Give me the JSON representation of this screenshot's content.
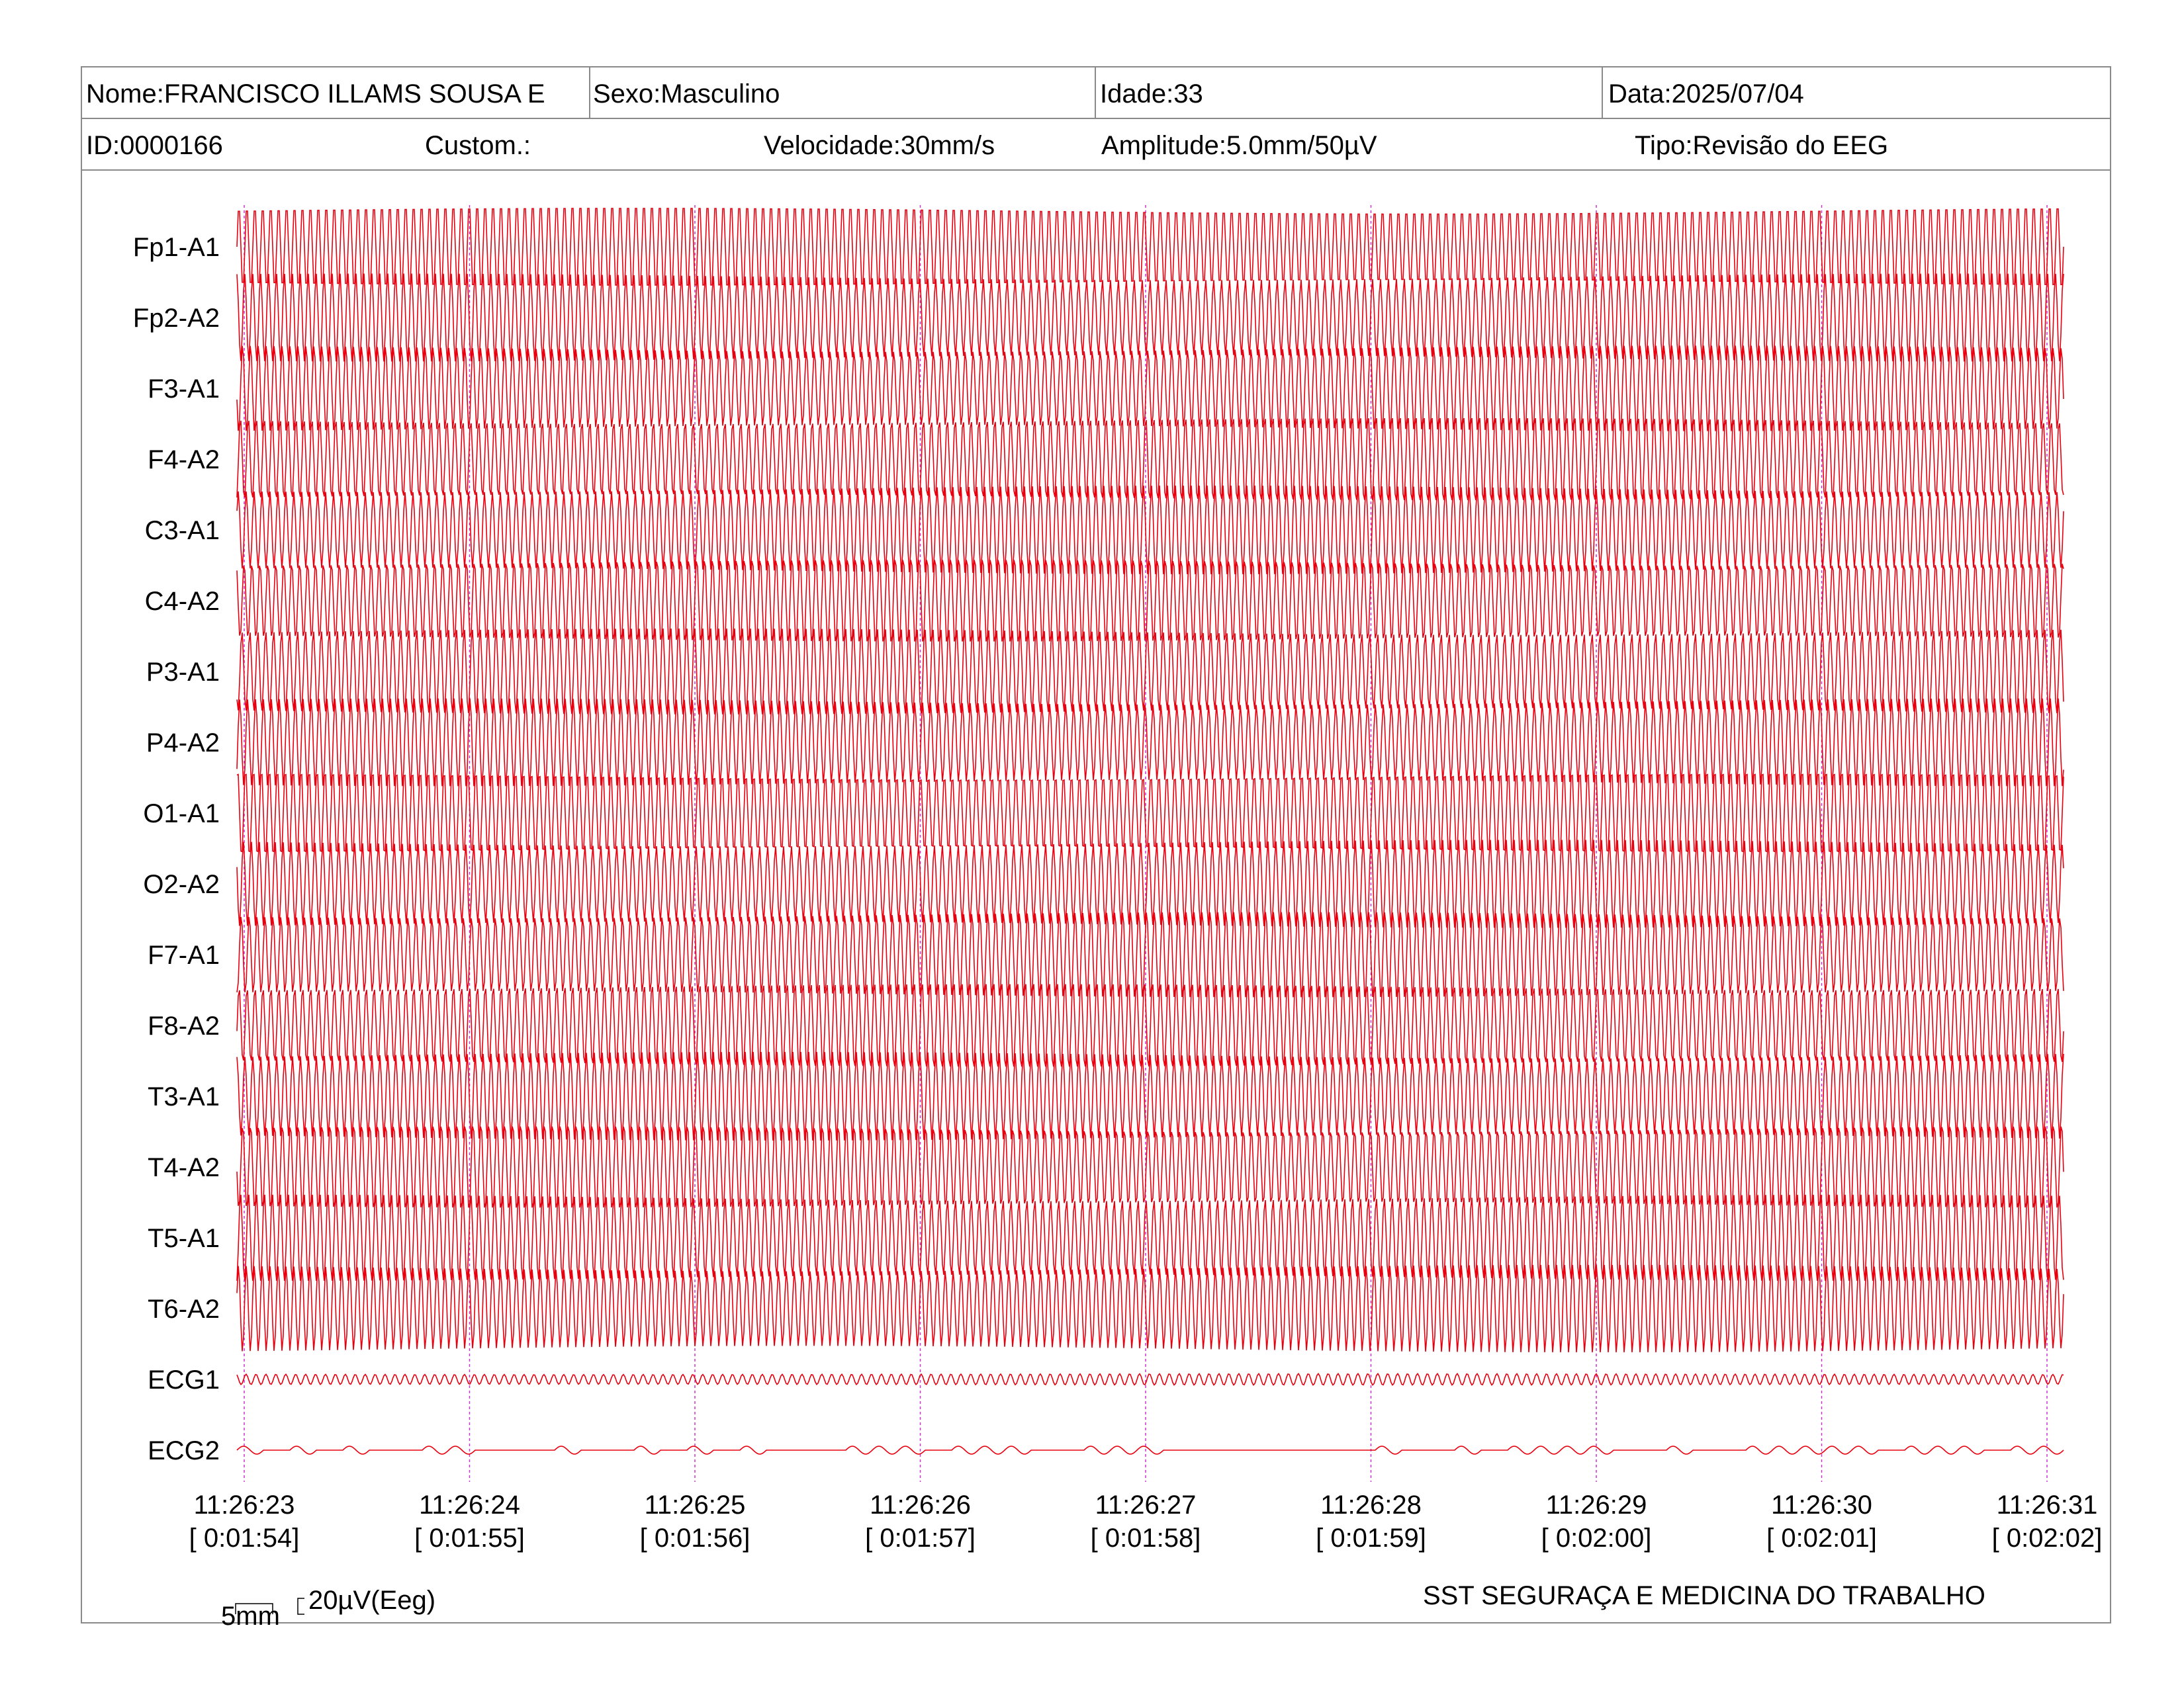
{
  "header": {
    "name": "Nome:FRANCISCO ILLAMS SOUSA E",
    "sex": "Sexo:Masculino",
    "age": "Idade:33",
    "date": "Data:2025/07/04",
    "id": "ID:0000166",
    "custom": "Custom.:",
    "speed": "Velocidade:30mm/s",
    "amplitude": "Amplitude:5.0mm/50µV",
    "type": "Tipo:Revisão do EEG"
  },
  "channels": [
    "Fp1-A1",
    "Fp2-A2",
    "F3-A1",
    "F4-A2",
    "C3-A1",
    "C4-A2",
    "P3-A1",
    "P4-A2",
    "O1-A1",
    "O2-A2",
    "F7-A1",
    "F8-A2",
    "T3-A1",
    "T4-A2",
    "T5-A1",
    "T6-A2",
    "ECG1",
    "ECG2"
  ],
  "time_marks": [
    {
      "clock": "11:26:23",
      "elapsed": "[ 0:01:54]"
    },
    {
      "clock": "11:26:24",
      "elapsed": "[ 0:01:55]"
    },
    {
      "clock": "11:26:25",
      "elapsed": "[ 0:01:56]"
    },
    {
      "clock": "11:26:26",
      "elapsed": "[ 0:01:57]"
    },
    {
      "clock": "11:26:27",
      "elapsed": "[ 0:01:58]"
    },
    {
      "clock": "11:26:28",
      "elapsed": "[ 0:01:59]"
    },
    {
      "clock": "11:26:29",
      "elapsed": "[ 0:02:00]"
    },
    {
      "clock": "11:26:30",
      "elapsed": "[ 0:02:01]"
    },
    {
      "clock": "11:26:31",
      "elapsed": "[ 0:02:02]"
    }
  ],
  "scale": {
    "time": "5mm",
    "amplitude": "20µV(Eeg)"
  },
  "footer": "SST SEGURAÇA E MEDICINA DO TRABALHO",
  "colors": {
    "trace": "#e8000f",
    "marker": "#cc33cc",
    "border": "#8a8a8a"
  }
}
